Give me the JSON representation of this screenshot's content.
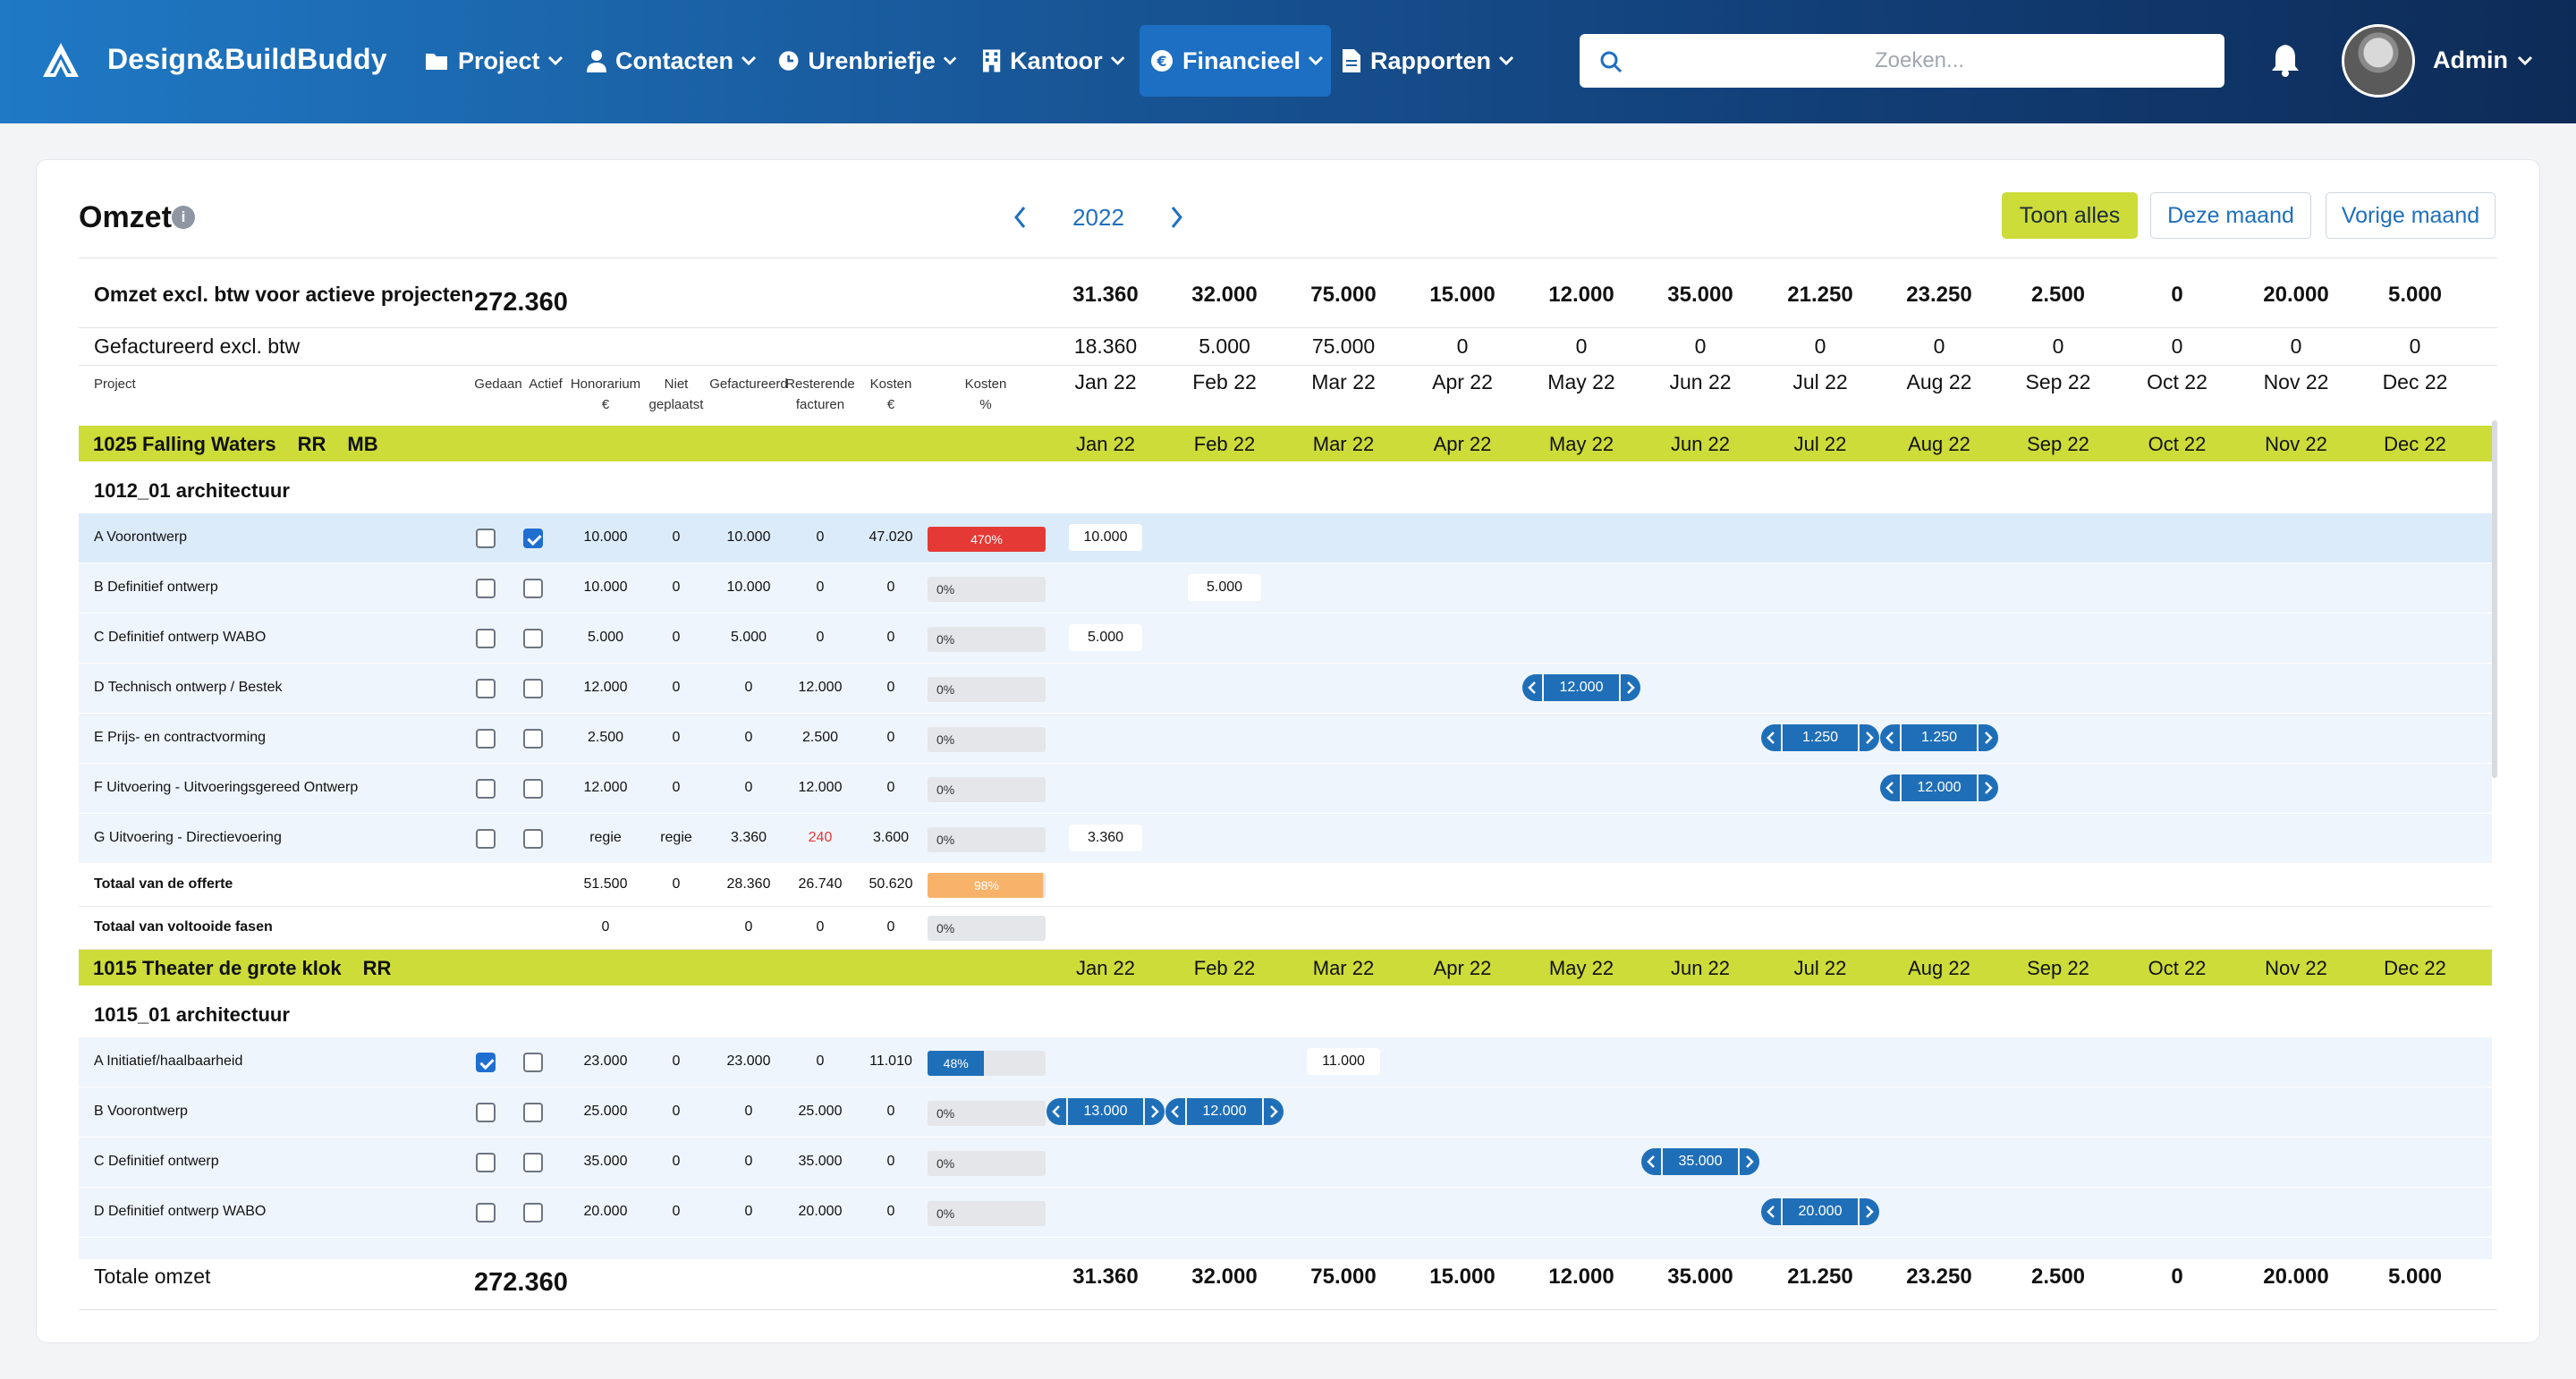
{
  "app": {
    "name": "Design&BuildBuddy"
  },
  "nav": [
    {
      "label": "Project",
      "icon": "folder-icon"
    },
    {
      "label": "Contacten",
      "icon": "user-icon"
    },
    {
      "label": "Urenbriefje",
      "icon": "clock-icon"
    },
    {
      "label": "Kantoor",
      "icon": "building-icon"
    },
    {
      "label": "Financieel",
      "icon": "euro-icon",
      "active": true
    },
    {
      "label": "Rapporten",
      "icon": "document-icon"
    }
  ],
  "search": {
    "placeholder": "Zoeken..."
  },
  "user": {
    "name": "Admin"
  },
  "page": {
    "title": "Omzet",
    "info": "i",
    "year": "2022"
  },
  "buttons": {
    "show_all": "Toon alles",
    "this_month": "Deze maand",
    "prev_month": "Vorige maand"
  },
  "months": [
    "Jan 22",
    "Feb 22",
    "Mar 22",
    "Apr 22",
    "May 22",
    "Jun 22",
    "Jul 22",
    "Aug 22",
    "Sep 22",
    "Oct 22",
    "Nov 22",
    "Dec 22"
  ],
  "summary": {
    "omzet_label": "Omzet excl. btw voor actieve projecten",
    "omzet_total": "272.360",
    "omzet_monthly": [
      "31.360",
      "32.000",
      "75.000",
      "15.000",
      "12.000",
      "35.000",
      "21.250",
      "23.250",
      "2.500",
      "0",
      "20.000",
      "5.000"
    ],
    "gef_label": "Gefactureerd excl. btw",
    "gef_monthly": [
      "18.360",
      "5.000",
      "75.000",
      "0",
      "0",
      "0",
      "0",
      "0",
      "0",
      "0",
      "0",
      "0"
    ]
  },
  "columns": {
    "project": "Project",
    "gedaan": "Gedaan",
    "actief": "Actief",
    "honorarium": [
      "Honorarium",
      "€"
    ],
    "niet": [
      "Niet",
      "geplaatst"
    ],
    "gefactureerd": "Gefactureerd",
    "resterend": [
      "Resterende",
      "facturen"
    ],
    "kosten": [
      "Kosten",
      "€"
    ],
    "kosten_pct": [
      "Kosten",
      "%"
    ]
  },
  "projects": [
    {
      "name": "1025 Falling Waters",
      "tags": [
        "RR",
        "MB"
      ],
      "sub": "1012_01 architectuur",
      "rows": [
        {
          "name": "A Voorontwerp",
          "gedaan": false,
          "actief": true,
          "hon": "10.000",
          "niet": "0",
          "gef": "10.000",
          "rest": "0",
          "kosten": "47.020",
          "pct": 100,
          "pct_label": "470%",
          "bar": "red"
        },
        {
          "name": "B Definitief ontwerp",
          "gedaan": false,
          "actief": false,
          "hon": "10.000",
          "niet": "0",
          "gef": "10.000",
          "rest": "0",
          "kosten": "0",
          "pct": 0,
          "pct_label": "0%",
          "bar": "gray"
        },
        {
          "name": "C Definitief ontwerp WABO",
          "gedaan": false,
          "actief": false,
          "hon": "5.000",
          "niet": "0",
          "gef": "5.000",
          "rest": "0",
          "kosten": "0",
          "pct": 0,
          "pct_label": "0%",
          "bar": "gray"
        },
        {
          "name": "D Technisch ontwerp / Bestek",
          "gedaan": false,
          "actief": false,
          "hon": "12.000",
          "niet": "0",
          "gef": "0",
          "rest": "12.000",
          "kosten": "0",
          "pct": 0,
          "pct_label": "0%",
          "bar": "gray"
        },
        {
          "name": "E Prijs- en contractvorming",
          "gedaan": false,
          "actief": false,
          "hon": "2.500",
          "niet": "0",
          "gef": "0",
          "rest": "2.500",
          "kosten": "0",
          "pct": 0,
          "pct_label": "0%",
          "bar": "gray"
        },
        {
          "name": "F Uitvoering - Uitvoeringsgereed Ontwerp",
          "gedaan": false,
          "actief": false,
          "hon": "12.000",
          "niet": "0",
          "gef": "0",
          "rest": "12.000",
          "kosten": "0",
          "pct": 0,
          "pct_label": "0%",
          "bar": "gray"
        },
        {
          "name": "G Uitvoering - Directievoering",
          "gedaan": false,
          "actief": false,
          "hon": "regie",
          "niet": "regie",
          "gef": "3.360",
          "rest": "240",
          "rest_red": true,
          "kosten": "3.600",
          "pct": 0,
          "pct_label": "0%",
          "bar": "gray"
        }
      ],
      "cells": [
        {
          "row": 0,
          "month": 0,
          "label": "10.000",
          "kind": "plain"
        },
        {
          "row": 1,
          "month": 1,
          "label": "5.000",
          "kind": "plain"
        },
        {
          "row": 2,
          "month": 0,
          "label": "5.000",
          "kind": "plain"
        },
        {
          "row": 3,
          "month": 4,
          "label": "12.000",
          "kind": "chip"
        },
        {
          "row": 4,
          "month": 6,
          "label": "1.250",
          "kind": "chip"
        },
        {
          "row": 4,
          "month": 7,
          "label": "1.250",
          "kind": "chip"
        },
        {
          "row": 5,
          "month": 7,
          "label": "12.000",
          "kind": "chip"
        },
        {
          "row": 6,
          "month": 0,
          "label": "3.360",
          "kind": "plain"
        }
      ],
      "total_offerte": {
        "label": "Totaal van de offerte",
        "hon": "51.500",
        "niet": "0",
        "gef": "28.360",
        "rest": "26.740",
        "kosten": "50.620",
        "pct": 98,
        "pct_label": "98%"
      },
      "total_voltooid": {
        "label": "Totaal van voltooide fasen",
        "hon": "0",
        "gef": "0",
        "rest": "0",
        "kosten": "0",
        "pct": 0,
        "pct_label": "0%"
      }
    },
    {
      "name": "1015 Theater de grote klok",
      "tags": [
        "RR"
      ],
      "sub": "1015_01 architectuur",
      "rows": [
        {
          "name": "A Initiatief/haalbaarheid",
          "gedaan": true,
          "actief": false,
          "hon": "23.000",
          "niet": "0",
          "gef": "23.000",
          "rest": "0",
          "kosten": "11.010",
          "pct": 48,
          "pct_label": "48%",
          "bar": "blue"
        },
        {
          "name": "B Voorontwerp",
          "gedaan": false,
          "actief": false,
          "hon": "25.000",
          "niet": "0",
          "gef": "0",
          "rest": "25.000",
          "kosten": "0",
          "pct": 0,
          "pct_label": "0%",
          "bar": "gray"
        },
        {
          "name": "C Definitief ontwerp",
          "gedaan": false,
          "actief": false,
          "hon": "35.000",
          "niet": "0",
          "gef": "0",
          "rest": "35.000",
          "kosten": "0",
          "pct": 0,
          "pct_label": "0%",
          "bar": "gray"
        },
        {
          "name": "D Definitief ontwerp WABO",
          "gedaan": false,
          "actief": false,
          "hon": "20.000",
          "niet": "0",
          "gef": "0",
          "rest": "20.000",
          "kosten": "0",
          "pct": 0,
          "pct_label": "0%",
          "bar": "gray"
        }
      ],
      "cells": [
        {
          "row": 0,
          "month": 2,
          "label": "11.000",
          "kind": "plain"
        },
        {
          "row": 1,
          "month": 0,
          "label": "13.000",
          "kind": "chip"
        },
        {
          "row": 1,
          "month": 1,
          "label": "12.000",
          "kind": "chip"
        },
        {
          "row": 2,
          "month": 5,
          "label": "35.000",
          "kind": "chip"
        },
        {
          "row": 3,
          "month": 6,
          "label": "20.000",
          "kind": "chip"
        }
      ]
    }
  ],
  "footer": {
    "label": "Totale omzet",
    "total": "272.360",
    "monthly": [
      "31.360",
      "32.000",
      "75.000",
      "15.000",
      "12.000",
      "35.000",
      "21.250",
      "23.250",
      "2.500",
      "0",
      "20.000",
      "5.000"
    ]
  },
  "colors": {
    "accent": "#cddc39",
    "primary": "#1f6fb8",
    "danger": "#e53935",
    "warning": "#f8b26a",
    "gray": "#e4e6e9"
  }
}
